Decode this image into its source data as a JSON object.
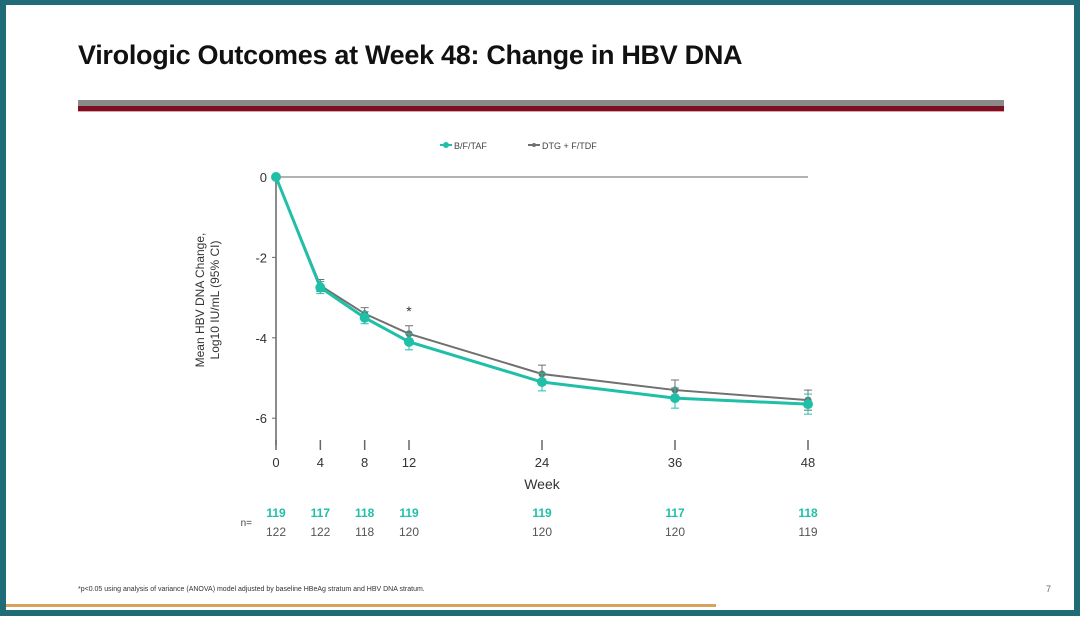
{
  "slide": {
    "title": "Virologic Outcomes at Week 48: Change in HBV DNA",
    "footnote": "*p<0.05 using analysis of variance (ANOVA) model adjusted by baseline HBeAg stratum and HBV DNA stratum.",
    "page_number": "7"
  },
  "colors": {
    "bftaf": "#1fbfa8",
    "dtg": "#707070",
    "frame": "#1f6c78",
    "rule_red": "#7a1020"
  },
  "chart_data": {
    "type": "line",
    "title": "",
    "xlabel": "Week",
    "ylabel_line1": "Mean HBV DNA Change,",
    "ylabel_line2": "Log10 IU/mL (95% CI)",
    "x": [
      0,
      4,
      8,
      12,
      24,
      36,
      48
    ],
    "xticks": [
      "0",
      "4",
      "8",
      "12",
      "24",
      "36",
      "48"
    ],
    "yticks": [
      "0",
      "-2",
      "-4",
      "-6"
    ],
    "ylim": [
      -6.5,
      0
    ],
    "xlim": [
      0,
      48
    ],
    "legend_position": "top-center",
    "series": [
      {
        "name": "B/F/TAF",
        "values": [
          0,
          -2.75,
          -3.5,
          -4.1,
          -5.1,
          -5.5,
          -5.65
        ],
        "ci": [
          0,
          0.15,
          0.15,
          0.2,
          0.22,
          0.25,
          0.25
        ],
        "n": [
          "119",
          "117",
          "118",
          "119",
          "119",
          "117",
          "118"
        ]
      },
      {
        "name": "DTG + F/TDF",
        "values": [
          0,
          -2.7,
          -3.4,
          -3.9,
          -4.9,
          -5.3,
          -5.55
        ],
        "ci": [
          0,
          0.15,
          0.15,
          0.2,
          0.22,
          0.25,
          0.25
        ],
        "n": [
          "122",
          "122",
          "118",
          "120",
          "120",
          "120",
          "119"
        ]
      }
    ],
    "annotations": [
      {
        "x": 12,
        "text": "*"
      }
    ],
    "n_label": "n="
  }
}
